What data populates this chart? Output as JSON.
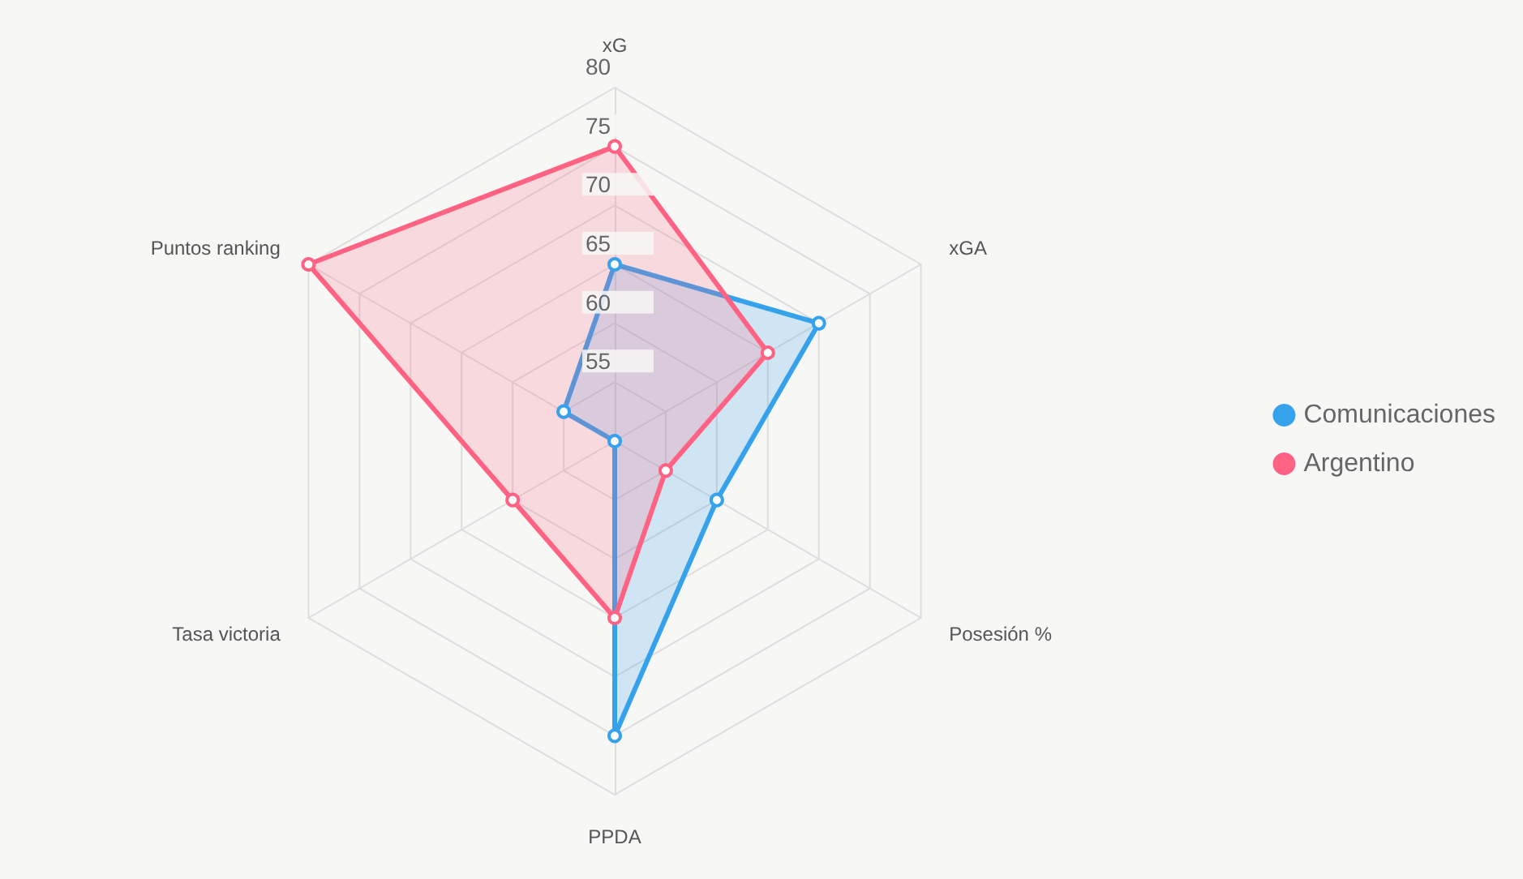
{
  "chart_data": {
    "type": "radar",
    "categories": [
      "xG",
      "xGA",
      "Posesión %",
      "PPDA",
      "Tasa victoria",
      "Puntos ranking"
    ],
    "series": [
      {
        "name": "Comunicaciones",
        "color": "#36a2eb",
        "values": [
          65,
          70,
          60,
          75,
          50,
          55
        ]
      },
      {
        "name": "Argentino",
        "color": "#ff6384",
        "values": [
          75,
          65,
          55,
          65,
          60,
          80
        ]
      }
    ],
    "ylim": [
      50,
      80
    ],
    "yticks": [
      55,
      60,
      65,
      70,
      75,
      80
    ],
    "grid": true,
    "legend": "right",
    "marker": "circle"
  }
}
